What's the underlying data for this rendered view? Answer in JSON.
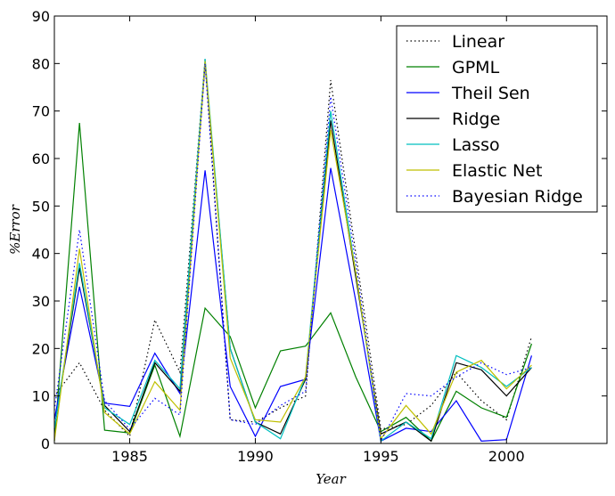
{
  "chart_data": {
    "type": "line",
    "title": "",
    "xlabel": "$Year$",
    "ylabel": "$\\%Error$",
    "xlim": [
      1982,
      2004
    ],
    "ylim": [
      0,
      90
    ],
    "x_ticks": [
      1985,
      1990,
      1995,
      2000
    ],
    "y_ticks": [
      0,
      10,
      20,
      30,
      40,
      50,
      60,
      70,
      80,
      90
    ],
    "grid": false,
    "legend_position": "top-right",
    "x": [
      1982,
      1983,
      1984,
      1985,
      1986,
      1987,
      1988,
      1989,
      1990,
      1991,
      1992,
      1993,
      1994,
      1995,
      1996,
      1997,
      1998,
      1999,
      2000,
      2001
    ],
    "series": [
      {
        "name": "Linear",
        "color": "#000000",
        "style": "dotted",
        "values": [
          10,
          17,
          7,
          1.5,
          26,
          15,
          81,
          5,
          4.5,
          7.5,
          10,
          76.5,
          40,
          3,
          4,
          8,
          15,
          9,
          5,
          22.5
        ]
      },
      {
        "name": "GPML",
        "color": "#008000",
        "style": "solid",
        "values": [
          0.5,
          67.5,
          2.8,
          2.2,
          16.5,
          1.5,
          28.5,
          22.5,
          7.5,
          19.5,
          20.5,
          27.5,
          14,
          2.5,
          5.5,
          0.5,
          11,
          7.5,
          5.5,
          21
        ]
      },
      {
        "name": "Theil Sen",
        "color": "#0000ff",
        "style": "solid",
        "values": [
          5,
          33,
          8.5,
          7.8,
          19,
          10.5,
          57.5,
          12,
          1.5,
          12,
          13.5,
          58,
          30,
          0.5,
          3.2,
          2.5,
          9,
          0.5,
          0.8,
          18.5
        ]
      },
      {
        "name": "Ridge",
        "color": "#000000",
        "style": "solid",
        "values": [
          3,
          37,
          8,
          2.5,
          17,
          11,
          80,
          20,
          4.5,
          2,
          13.5,
          68,
          35,
          2,
          4.5,
          0.5,
          17,
          15.5,
          10,
          16
        ]
      },
      {
        "name": "Lasso",
        "color": "#00bfbf",
        "style": "solid",
        "values": [
          3,
          38,
          7.5,
          4,
          17.5,
          11.5,
          81,
          20,
          4.5,
          1,
          14,
          70,
          36,
          0.5,
          4.5,
          1,
          18.5,
          16,
          12,
          16
        ]
      },
      {
        "name": "Elastic Net",
        "color": "#bfbf00",
        "style": "solid",
        "values": [
          0.5,
          41,
          6.5,
          2,
          13,
          7,
          80.5,
          18,
          5,
          4.5,
          14,
          66,
          36,
          1,
          8,
          2,
          15,
          17.5,
          11.5,
          16.5
        ]
      },
      {
        "name": "Bayesian Ridge",
        "color": "#0000ff",
        "style": "dotted",
        "values": [
          7,
          45,
          9,
          3,
          9.5,
          6,
          80,
          5,
          4,
          8,
          11,
          73,
          38,
          0.5,
          10.5,
          10,
          14,
          17,
          14.5,
          16
        ]
      }
    ]
  }
}
